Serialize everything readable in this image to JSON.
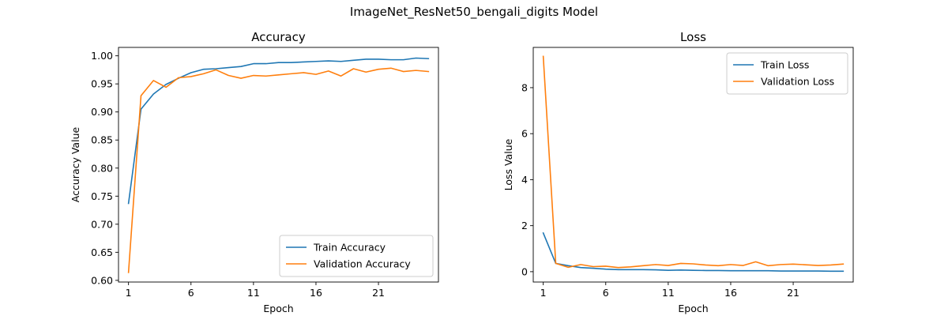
{
  "figure_title": "ImageNet_ResNet50_bengali_digits Model",
  "colors": {
    "train": "#1f77b4",
    "validation": "#ff7f0e"
  },
  "chart_data": [
    {
      "type": "line",
      "title": "Accuracy",
      "xlabel": "Epoch",
      "ylabel": "Accuracy Value",
      "xlim": [
        0.2,
        25.8
      ],
      "ylim": [
        0.597,
        1.015
      ],
      "xticks": [
        1,
        6,
        11,
        16,
        21
      ],
      "xtick_labels": [
        "1",
        "6",
        "11",
        "16",
        "21"
      ],
      "yticks": [
        0.6,
        0.65,
        0.7,
        0.75,
        0.8,
        0.85,
        0.9,
        0.95,
        1.0
      ],
      "ytick_labels": [
        "0.60",
        "0.65",
        "0.70",
        "0.75",
        "0.80",
        "0.85",
        "0.90",
        "0.95",
        "1.00"
      ],
      "legend_position": "lower-right",
      "grid": false,
      "x": [
        1,
        2,
        3,
        4,
        5,
        6,
        7,
        8,
        9,
        10,
        11,
        12,
        13,
        14,
        15,
        16,
        17,
        18,
        19,
        20,
        21,
        22,
        23,
        24,
        25
      ],
      "series": [
        {
          "name": "Train Accuracy",
          "color": "#1f77b4",
          "values": [
            0.737,
            0.905,
            0.932,
            0.949,
            0.96,
            0.97,
            0.976,
            0.977,
            0.979,
            0.981,
            0.986,
            0.986,
            0.988,
            0.988,
            0.989,
            0.99,
            0.991,
            0.99,
            0.992,
            0.994,
            0.994,
            0.993,
            0.993,
            0.996,
            0.995
          ]
        },
        {
          "name": "Validation Accuracy",
          "color": "#ff7f0e",
          "values": [
            0.614,
            0.929,
            0.956,
            0.944,
            0.961,
            0.963,
            0.968,
            0.975,
            0.965,
            0.96,
            0.965,
            0.964,
            0.966,
            0.968,
            0.97,
            0.967,
            0.973,
            0.964,
            0.977,
            0.971,
            0.976,
            0.978,
            0.972,
            0.974,
            0.972
          ]
        }
      ]
    },
    {
      "type": "line",
      "title": "Loss",
      "xlabel": "Epoch",
      "ylabel": "Loss Value",
      "xlim": [
        0.2,
        25.8
      ],
      "ylim": [
        -0.45,
        9.75
      ],
      "xticks": [
        1,
        6,
        11,
        16,
        21
      ],
      "xtick_labels": [
        "1",
        "6",
        "11",
        "16",
        "21"
      ],
      "yticks": [
        0,
        2,
        4,
        6,
        8
      ],
      "ytick_labels": [
        "0",
        "2",
        "4",
        "6",
        "8"
      ],
      "legend_position": "upper-right",
      "grid": false,
      "x": [
        1,
        2,
        3,
        4,
        5,
        6,
        7,
        8,
        9,
        10,
        11,
        12,
        13,
        14,
        15,
        16,
        17,
        18,
        19,
        20,
        21,
        22,
        23,
        24,
        25
      ],
      "series": [
        {
          "name": "Train Loss",
          "color": "#1f77b4",
          "values": [
            1.68,
            0.36,
            0.26,
            0.18,
            0.15,
            0.11,
            0.09,
            0.09,
            0.09,
            0.08,
            0.06,
            0.07,
            0.06,
            0.05,
            0.05,
            0.04,
            0.04,
            0.04,
            0.04,
            0.03,
            0.03,
            0.03,
            0.03,
            0.02,
            0.02
          ]
        },
        {
          "name": "Validation Loss",
          "color": "#ff7f0e",
          "values": [
            9.36,
            0.36,
            0.19,
            0.31,
            0.22,
            0.24,
            0.18,
            0.21,
            0.26,
            0.31,
            0.27,
            0.36,
            0.34,
            0.29,
            0.26,
            0.31,
            0.27,
            0.43,
            0.26,
            0.31,
            0.33,
            0.3,
            0.27,
            0.29,
            0.33
          ]
        }
      ]
    }
  ]
}
